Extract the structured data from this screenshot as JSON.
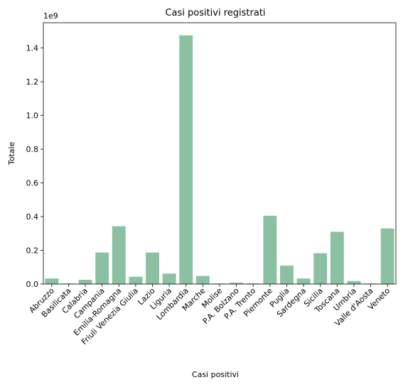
{
  "chart_data": {
    "type": "bar",
    "title": "Casi positivi registrati",
    "xlabel": "Casi positivi",
    "ylabel": "Totale",
    "y_offset_label": "1e9",
    "ylim": [
      0,
      1.55
    ],
    "y_ticks": [
      0.0,
      0.2,
      0.4,
      0.6,
      0.8,
      1.0,
      1.2,
      1.4
    ],
    "y_tick_labels": [
      "0.0",
      "0.2",
      "0.4",
      "0.6",
      "0.8",
      "1.0",
      "1.2",
      "1.4"
    ],
    "bar_color": "#8bc1a2",
    "grid": false,
    "categories": [
      "Abruzzo",
      "Basilicata",
      "Calabria",
      "Campania",
      "Emilia-Romagna",
      "Friuli Venezia Giulia",
      "Lazio",
      "Liguria",
      "Lombardia",
      "Marche",
      "Molise",
      "P.A. Bolzano",
      "P.A. Trento",
      "Piemonte",
      "Puglia",
      "Sardegna",
      "Sicilia",
      "Toscana",
      "Umbria",
      "Valle d'Aosta",
      "Veneto"
    ],
    "values": [
      0.033,
      0.003,
      0.025,
      0.187,
      0.343,
      0.043,
      0.187,
      0.062,
      1.475,
      0.048,
      0.003,
      0.008,
      0.004,
      0.405,
      0.109,
      0.033,
      0.183,
      0.31,
      0.018,
      0.003,
      0.33
    ]
  }
}
